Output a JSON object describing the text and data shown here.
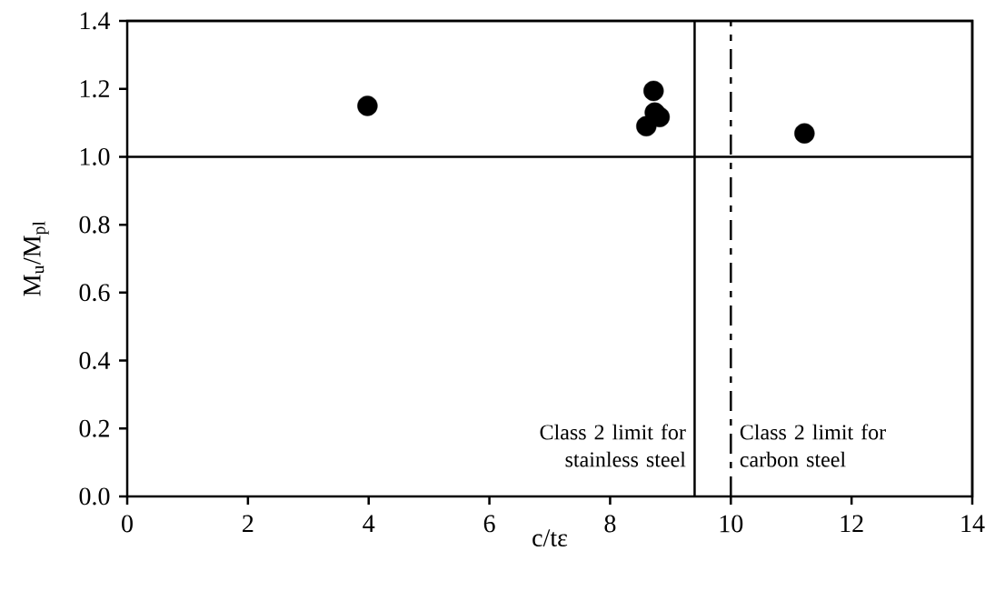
{
  "chart_data": {
    "type": "scatter",
    "xlabel": "c/tε",
    "ylabel": "M$_{u}$/M$_{pl}$",
    "x": [
      3.98,
      8.72,
      8.74,
      8.82,
      8.6,
      11.22
    ],
    "values": [
      1.15,
      1.194,
      1.13,
      1.117,
      1.09,
      1.069
    ],
    "color": "#000000",
    "xlim": [
      0,
      14
    ],
    "ylim": [
      0,
      1.4
    ],
    "xticks": [
      0,
      2,
      4,
      6,
      8,
      10,
      12,
      14
    ],
    "yticks": [
      {
        "value": 0,
        "label": "0.0"
      },
      {
        "value": 0.2,
        "label": "0.2"
      },
      {
        "value": 0.4,
        "label": "0.4"
      },
      {
        "value": 0.6,
        "label": "0.6"
      },
      {
        "value": 0.8,
        "label": "0.8"
      },
      {
        "value": 1.0,
        "label": "1.0"
      },
      {
        "value": 1.2,
        "label": "1.2"
      },
      {
        "value": 1.4,
        "label": "1.4"
      }
    ],
    "ref_lines": [
      {
        "axis": "y",
        "value": 1.0,
        "line_style": "solid"
      },
      {
        "axis": "x",
        "value": 9.4,
        "label": "Class 2 limit for stainless steel",
        "line_style": "solid"
      },
      {
        "axis": "x",
        "value": 10,
        "label": "Class 2 limit for carbon steel",
        "line_style": "dashdot"
      }
    ],
    "grid": false
  }
}
